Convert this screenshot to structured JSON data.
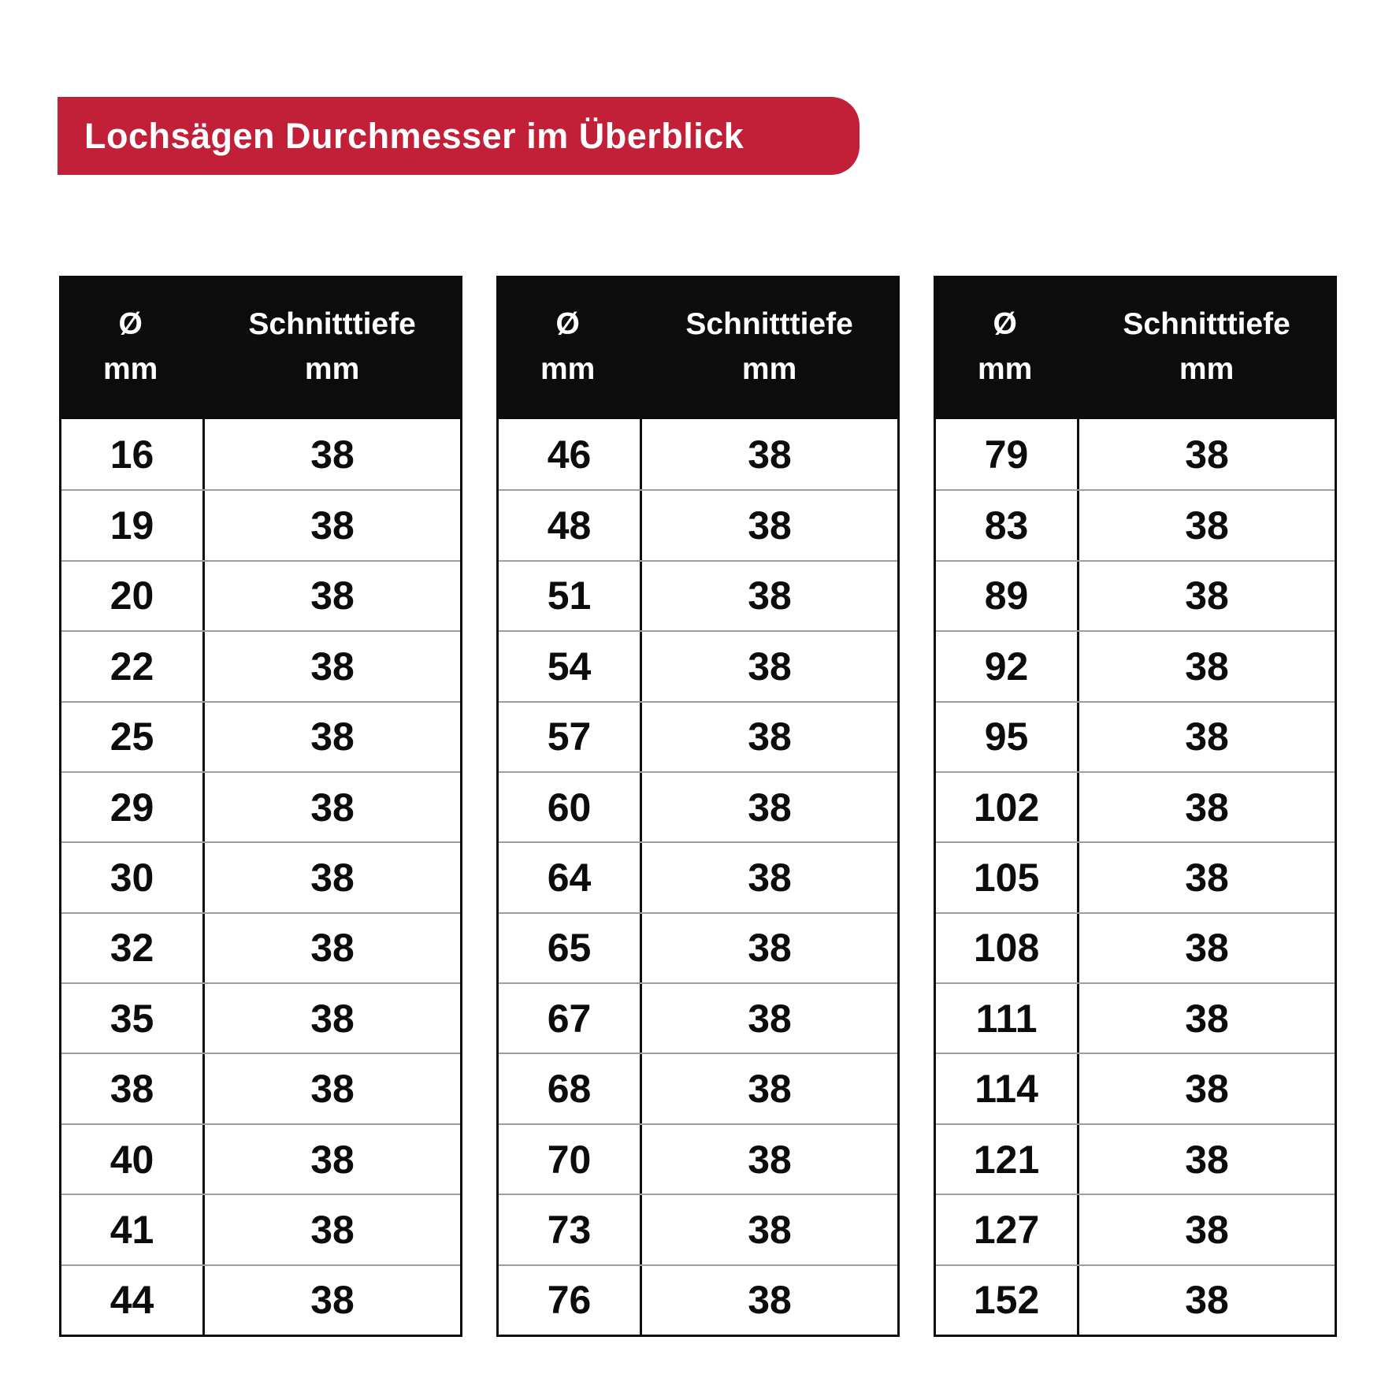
{
  "banner": {
    "title": "Lochsägen Durchmesser im Überblick",
    "bg_color": "#c21f38",
    "text_color": "#ffffff"
  },
  "table_header": {
    "diameter_symbol": "Ø",
    "diameter_unit": "mm",
    "depth_label": "Schnitttiefe",
    "depth_unit": "mm"
  },
  "tables": [
    {
      "rows": [
        [
          "16",
          "38"
        ],
        [
          "19",
          "38"
        ],
        [
          "20",
          "38"
        ],
        [
          "22",
          "38"
        ],
        [
          "25",
          "38"
        ],
        [
          "29",
          "38"
        ],
        [
          "30",
          "38"
        ],
        [
          "32",
          "38"
        ],
        [
          "35",
          "38"
        ],
        [
          "38",
          "38"
        ],
        [
          "40",
          "38"
        ],
        [
          "41",
          "38"
        ],
        [
          "44",
          "38"
        ]
      ]
    },
    {
      "rows": [
        [
          "46",
          "38"
        ],
        [
          "48",
          "38"
        ],
        [
          "51",
          "38"
        ],
        [
          "54",
          "38"
        ],
        [
          "57",
          "38"
        ],
        [
          "60",
          "38"
        ],
        [
          "64",
          "38"
        ],
        [
          "65",
          "38"
        ],
        [
          "67",
          "38"
        ],
        [
          "68",
          "38"
        ],
        [
          "70",
          "38"
        ],
        [
          "73",
          "38"
        ],
        [
          "76",
          "38"
        ]
      ]
    },
    {
      "rows": [
        [
          "79",
          "38"
        ],
        [
          "83",
          "38"
        ],
        [
          "89",
          "38"
        ],
        [
          "92",
          "38"
        ],
        [
          "95",
          "38"
        ],
        [
          "102",
          "38"
        ],
        [
          "105",
          "38"
        ],
        [
          "108",
          "38"
        ],
        [
          "111",
          "38"
        ],
        [
          "114",
          "38"
        ],
        [
          "121",
          "38"
        ],
        [
          "127",
          "38"
        ],
        [
          "152",
          "38"
        ]
      ]
    }
  ],
  "chart_data": {
    "type": "table",
    "title": "Lochsägen Durchmesser im Überblick",
    "column_headers": [
      "Ø mm",
      "Schnitttiefe mm"
    ],
    "tables": [
      {
        "position": "left",
        "rows": [
          [
            16,
            38
          ],
          [
            19,
            38
          ],
          [
            20,
            38
          ],
          [
            22,
            38
          ],
          [
            25,
            38
          ],
          [
            29,
            38
          ],
          [
            30,
            38
          ],
          [
            32,
            38
          ],
          [
            35,
            38
          ],
          [
            38,
            38
          ],
          [
            40,
            38
          ],
          [
            41,
            38
          ],
          [
            44,
            38
          ]
        ]
      },
      {
        "position": "middle",
        "rows": [
          [
            46,
            38
          ],
          [
            48,
            38
          ],
          [
            51,
            38
          ],
          [
            54,
            38
          ],
          [
            57,
            38
          ],
          [
            60,
            38
          ],
          [
            64,
            38
          ],
          [
            65,
            38
          ],
          [
            67,
            38
          ],
          [
            68,
            38
          ],
          [
            70,
            38
          ],
          [
            73,
            38
          ],
          [
            76,
            38
          ]
        ]
      },
      {
        "position": "right",
        "rows": [
          [
            79,
            38
          ],
          [
            83,
            38
          ],
          [
            89,
            38
          ],
          [
            92,
            38
          ],
          [
            95,
            38
          ],
          [
            102,
            38
          ],
          [
            105,
            38
          ],
          [
            108,
            38
          ],
          [
            111,
            38
          ],
          [
            114,
            38
          ],
          [
            121,
            38
          ],
          [
            127,
            38
          ],
          [
            152,
            38
          ]
        ]
      }
    ]
  }
}
